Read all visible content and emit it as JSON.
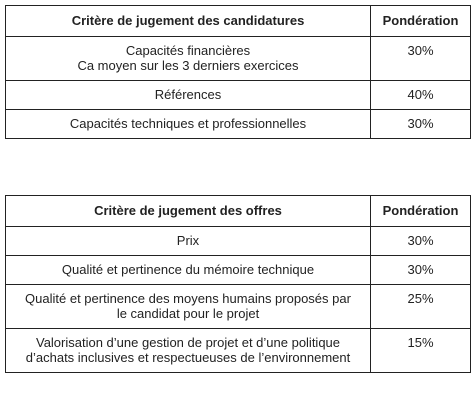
{
  "tables": [
    {
      "headers": [
        "Critère de jugement des candidatures",
        "Pondération"
      ],
      "rows": [
        [
          "Capacités financières\nCa moyen sur les 3 derniers exercices",
          "30%"
        ],
        [
          "Références",
          "40%"
        ],
        [
          "Capacités techniques et professionnelles",
          "30%"
        ]
      ]
    },
    {
      "headers": [
        "Critère de jugement des offres",
        "Pondération"
      ],
      "rows": [
        [
          "Prix",
          "30%"
        ],
        [
          "Qualité et pertinence du mémoire technique",
          "30%"
        ],
        [
          "Qualité et pertinence des moyens humains proposés par le candidat pour le projet",
          "25%"
        ],
        [
          "Valorisation d’une gestion de projet et d’une politique d’achats inclusives et respectueuses de l’environnement",
          "15%"
        ]
      ]
    }
  ]
}
